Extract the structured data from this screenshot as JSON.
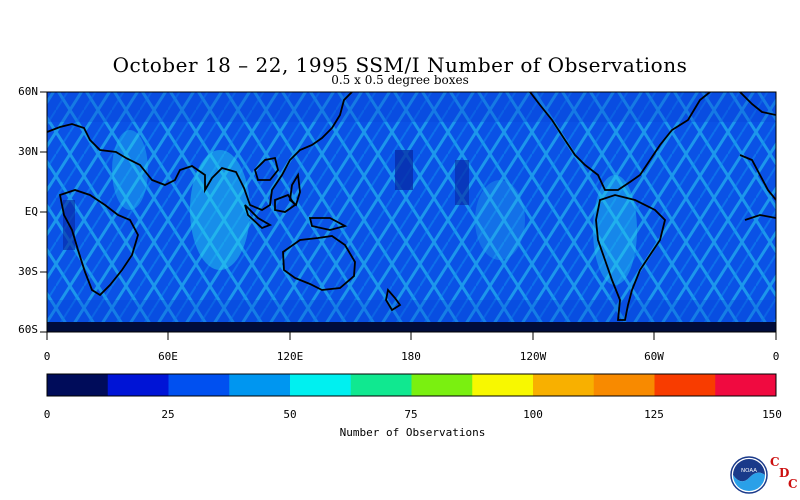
{
  "title": "October 18 – 22, 1995 SSM/I Number of Observations",
  "subtitle": "0.5 x 0.5 degree boxes",
  "lat_labels": [
    "60N",
    "30N",
    "EQ",
    "30S",
    "60S"
  ],
  "lon_labels": [
    "0",
    "60E",
    "120E",
    "180",
    "120W",
    "60W",
    "0"
  ],
  "colorbar": {
    "label": "Number of Observations",
    "ticks": [
      "0",
      "25",
      "50",
      "75",
      "100",
      "125",
      "150"
    ],
    "range": [
      0,
      150
    ],
    "colors": [
      "#000c5a",
      "#0014d6",
      "#0050f0",
      "#0096f0",
      "#00f0f0",
      "#10e890",
      "#7af010",
      "#f8f800",
      "#f8b000",
      "#f88a00",
      "#f83c00",
      "#f00a40"
    ]
  },
  "logo": {
    "icon": "noaa-logo-icon",
    "letters": [
      "C",
      "D",
      "C"
    ]
  }
}
